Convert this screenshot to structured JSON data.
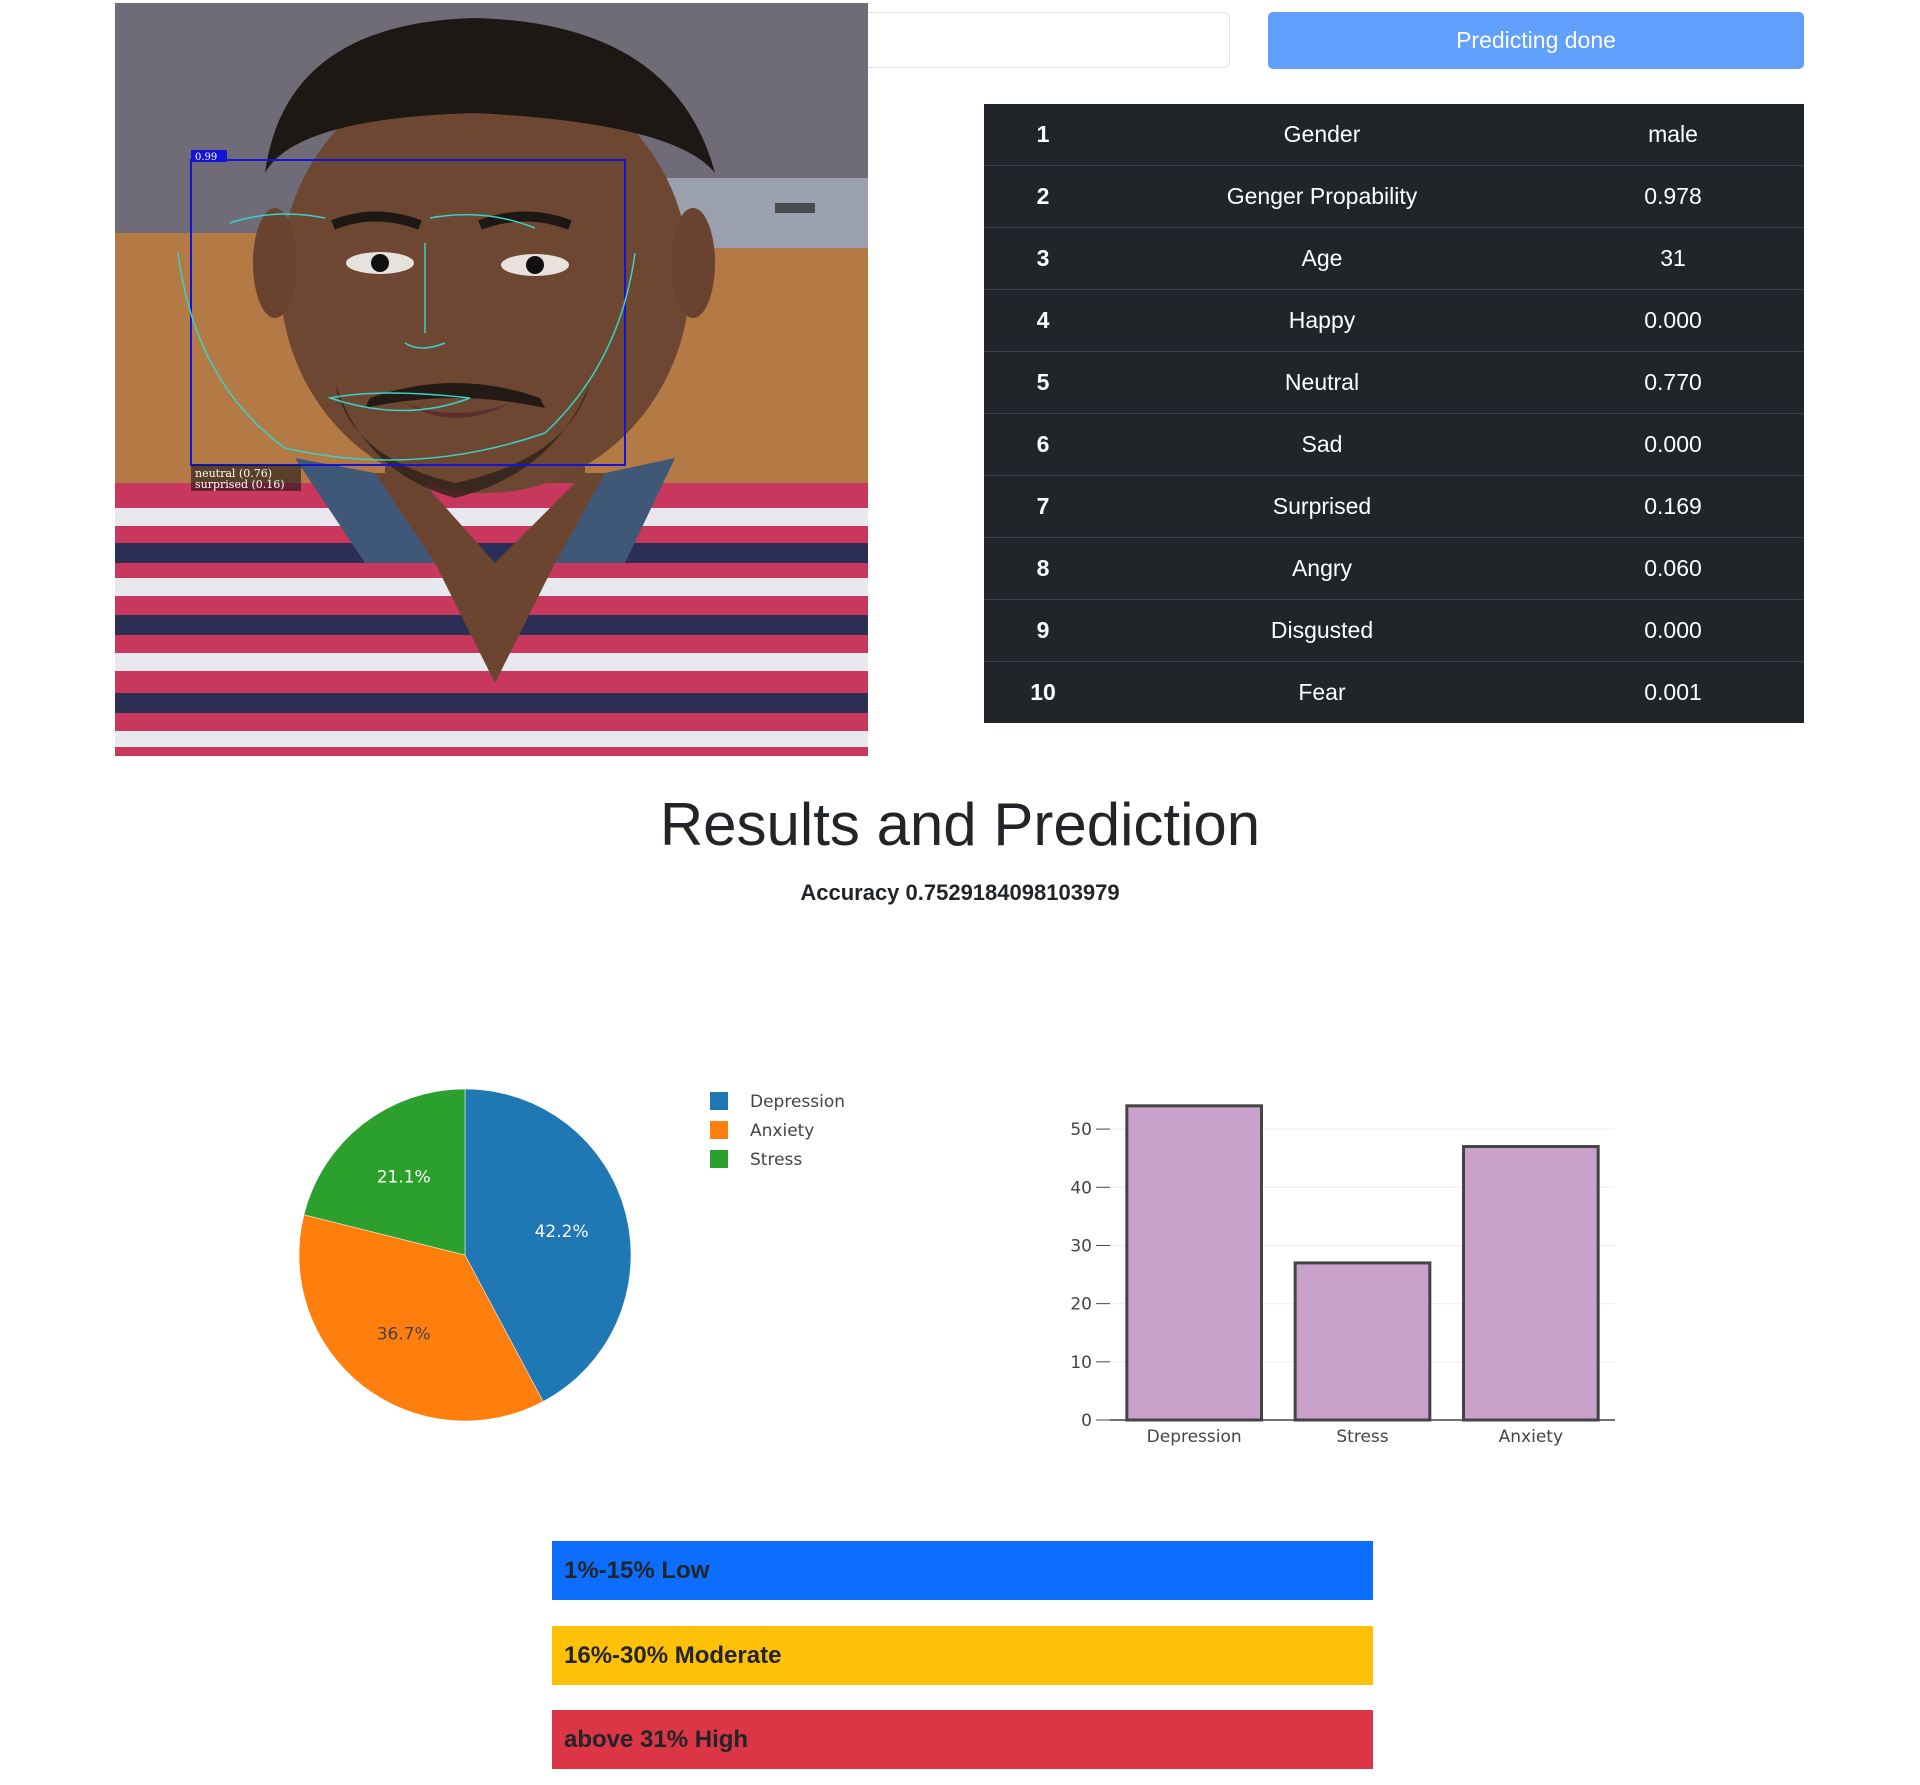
{
  "colors": {
    "button": "#62a0fd",
    "table_bg": "#212529",
    "low": "#0d6efd",
    "moderate": "#ffc107",
    "high": "#dc3545",
    "pie_depression": "#1f77b4",
    "pie_anxiety": "#ff7f0e",
    "pie_stress": "#2ca02c",
    "bar_fill": "#c9a1cb",
    "bar_stroke": "#444444"
  },
  "photo": {
    "face_score": "0.99",
    "expr_line1": "neutral (0.76)",
    "expr_line2": "surprised (0.16)"
  },
  "button": {
    "label": "Predicting done"
  },
  "table": {
    "rows": [
      {
        "idx": "1",
        "label": "Gender",
        "value": "male"
      },
      {
        "idx": "2",
        "label": "Genger Propability",
        "value": "0.978"
      },
      {
        "idx": "3",
        "label": "Age",
        "value": "31"
      },
      {
        "idx": "4",
        "label": "Happy",
        "value": "0.000"
      },
      {
        "idx": "5",
        "label": "Neutral",
        "value": "0.770"
      },
      {
        "idx": "6",
        "label": "Sad",
        "value": "0.000"
      },
      {
        "idx": "7",
        "label": "Surprised",
        "value": "0.169"
      },
      {
        "idx": "8",
        "label": "Angry",
        "value": "0.060"
      },
      {
        "idx": "9",
        "label": "Disgusted",
        "value": "0.000"
      },
      {
        "idx": "10",
        "label": "Fear",
        "value": "0.001"
      }
    ]
  },
  "heading": {
    "title": "Results and Prediction",
    "accuracy": "Accuracy 0.7529184098103979"
  },
  "chart_data": [
    {
      "type": "pie",
      "categories": [
        "Depression",
        "Anxiety",
        "Stress"
      ],
      "values": [
        42.2,
        36.7,
        21.1
      ],
      "labels": [
        "42.2%",
        "36.7%",
        "21.1%"
      ],
      "legend": "right"
    },
    {
      "type": "bar",
      "categories": [
        "Depression",
        "Stress",
        "Anxiety"
      ],
      "values": [
        54,
        27,
        47
      ],
      "ylim": [
        0,
        55
      ],
      "yticks": [
        0,
        10,
        20,
        30,
        40,
        50
      ],
      "grid": true
    }
  ],
  "levels": {
    "low": "1%-15% Low",
    "moderate": "16%-30% Moderate",
    "high": "above 31% High"
  }
}
